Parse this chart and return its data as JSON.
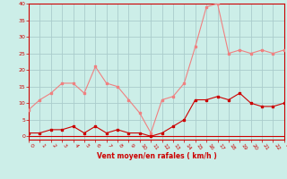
{
  "x": [
    0,
    1,
    2,
    3,
    4,
    5,
    6,
    7,
    8,
    9,
    10,
    11,
    12,
    13,
    14,
    15,
    16,
    17,
    18,
    19,
    20,
    21,
    22,
    23
  ],
  "rafales": [
    8,
    11,
    13,
    16,
    16,
    13,
    21,
    16,
    15,
    11,
    7,
    1,
    11,
    12,
    16,
    27,
    39,
    40,
    25,
    26,
    25,
    26,
    25,
    26
  ],
  "moyen": [
    1,
    1,
    2,
    2,
    3,
    1,
    3,
    1,
    2,
    1,
    1,
    0,
    1,
    3,
    5,
    11,
    11,
    12,
    11,
    13,
    10,
    9,
    9,
    10
  ],
  "rafales_color": "#f08080",
  "moyen_color": "#cc0000",
  "bg_color": "#cceee8",
  "grid_color": "#aacccc",
  "xlabel": "Vent moyen/en rafales ( km/h )",
  "ylim": [
    -1,
    40
  ],
  "xlim": [
    0,
    23
  ],
  "yticks": [
    0,
    5,
    10,
    15,
    20,
    25,
    30,
    35,
    40
  ],
  "xticks": [
    0,
    1,
    2,
    3,
    4,
    5,
    6,
    7,
    8,
    9,
    10,
    11,
    12,
    13,
    14,
    15,
    16,
    17,
    18,
    19,
    20,
    21,
    22,
    23
  ]
}
